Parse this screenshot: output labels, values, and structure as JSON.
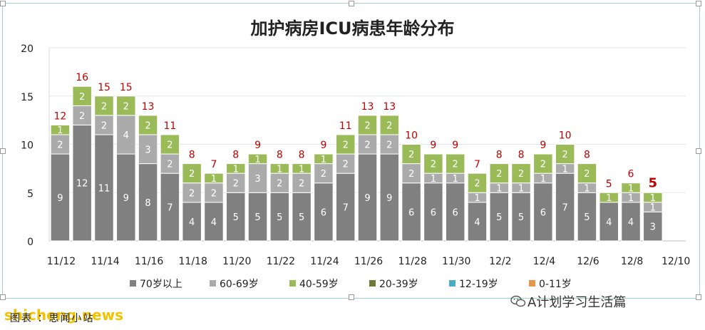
{
  "caption": "图表 ：思闻小站",
  "watermark": "shicheng.news",
  "account": "A计划学习生活篇",
  "colors": {
    "s70": "#808080",
    "s60": "#ababab",
    "s40": "#9bbb59",
    "s20": "#6b7a34",
    "s12": "#4bacc6",
    "s0": "#e6954c",
    "total_label": "#c00000"
  },
  "chart_data": {
    "type": "bar",
    "stacked": true,
    "title": "加护病房ICU病患年龄分布",
    "ylim": [
      0,
      20
    ],
    "yticks": [
      0,
      5,
      10,
      15,
      20
    ],
    "grid": true,
    "legend_position": "bottom",
    "categories": [
      "11/12",
      "11/13",
      "11/14",
      "11/15",
      "11/16",
      "11/17",
      "11/18",
      "11/19",
      "11/20",
      "11/21",
      "11/22",
      "11/23",
      "11/24",
      "11/25",
      "11/26",
      "11/27",
      "11/28",
      "11/29",
      "11/30",
      "12/1",
      "12/2",
      "12/3",
      "12/4",
      "12/5",
      "12/6",
      "12/7",
      "12/8",
      "12/9",
      "12/10"
    ],
    "xtick_labels": [
      "11/12",
      "",
      "11/14",
      "",
      "11/16",
      "",
      "11/18",
      "",
      "11/20",
      "",
      "11/22",
      "",
      "11/24",
      "",
      "11/26",
      "",
      "11/28",
      "",
      "11/30",
      "",
      "12/2",
      "",
      "12/4",
      "",
      "12/6",
      "",
      "12/8",
      "",
      "12/10"
    ],
    "series": [
      {
        "name": "70岁以上",
        "values": [
          9,
          12,
          11,
          9,
          8,
          7,
          4,
          4,
          5,
          5,
          5,
          5,
          6,
          7,
          9,
          9,
          6,
          6,
          6,
          4,
          5,
          5,
          6,
          7,
          5,
          4,
          4,
          3,
          0
        ]
      },
      {
        "name": "60-69岁",
        "values": [
          2,
          2,
          2,
          4,
          3,
          2,
          2,
          2,
          2,
          3,
          2,
          2,
          2,
          2,
          2,
          2,
          2,
          1,
          1,
          1,
          1,
          1,
          1,
          1,
          1,
          0,
          1,
          1,
          0
        ]
      },
      {
        "name": "40-59岁",
        "values": [
          1,
          2,
          2,
          2,
          2,
          2,
          2,
          1,
          1,
          1,
          1,
          1,
          1,
          2,
          2,
          2,
          2,
          2,
          2,
          2,
          2,
          2,
          2,
          2,
          2,
          1,
          1,
          1,
          0
        ]
      },
      {
        "name": "20-39岁",
        "values": [
          0,
          0,
          0,
          0,
          0,
          0,
          0,
          0,
          0,
          0,
          0,
          0,
          0,
          0,
          0,
          0,
          0,
          0,
          0,
          0,
          0,
          0,
          0,
          0,
          0,
          0,
          0,
          0,
          0
        ]
      },
      {
        "name": "12-19岁",
        "values": [
          0,
          0,
          0,
          0,
          0,
          0,
          0,
          0,
          0,
          0,
          0,
          0,
          0,
          0,
          0,
          0,
          0,
          0,
          0,
          0,
          0,
          0,
          0,
          0,
          0,
          0,
          0,
          0,
          0
        ]
      },
      {
        "name": "0-11岁",
        "values": [
          0,
          0,
          0,
          0,
          0,
          0,
          0,
          0,
          0,
          0,
          0,
          0,
          0,
          0,
          0,
          0,
          0,
          0,
          0,
          0,
          0,
          0,
          0,
          0,
          0,
          0,
          0,
          0,
          0
        ]
      }
    ],
    "totals": [
      12,
      16,
      15,
      15,
      13,
      11,
      8,
      7,
      8,
      9,
      8,
      8,
      9,
      11,
      13,
      13,
      10,
      9,
      9,
      7,
      8,
      8,
      9,
      10,
      8,
      5,
      6,
      5,
      null
    ]
  }
}
